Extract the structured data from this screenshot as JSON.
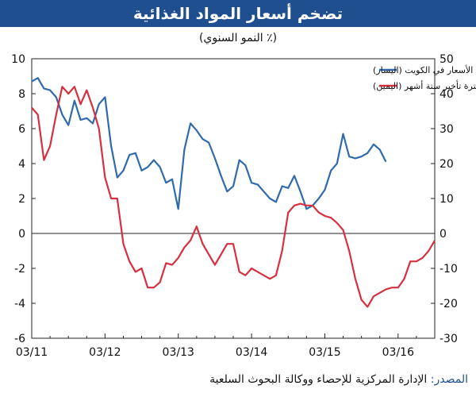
{
  "header": {
    "title": "تضخم أسعار المواد الغذائية",
    "subtitle": "(٪ النمو السنوي)"
  },
  "source": {
    "label": "المصدر:",
    "text": "الإدارة المركزية للإحصاء ووكالة البحوث السلعية"
  },
  "chart_data": {
    "type": "line",
    "grid": false,
    "legend_position": "top-right",
    "x_ticks": [
      "03/11",
      "03/12",
      "03/13",
      "03/14",
      "03/15",
      "03/16"
    ],
    "x_range_months": [
      0,
      66
    ],
    "y_left": {
      "min": -6,
      "max": 10,
      "step": 2,
      "ticks": [
        -6,
        -4,
        -2,
        0,
        2,
        4,
        6,
        8,
        10
      ]
    },
    "y_right": {
      "min": -30,
      "max": 50,
      "step": 10,
      "ticks": [
        -30,
        -20,
        -10,
        0,
        10,
        20,
        30,
        40,
        50
      ]
    },
    "series": [
      {
        "name": "الأسعار في الكويت (اليسار)",
        "axis": "left",
        "color": "#2f6aad",
        "x": [
          0,
          1,
          2,
          3,
          4,
          5,
          6,
          7,
          8,
          9,
          10,
          11,
          12,
          13,
          14,
          15,
          16,
          17,
          18,
          19,
          20,
          21,
          22,
          23,
          24,
          25,
          26,
          27,
          28,
          29,
          30,
          31,
          32,
          33,
          34,
          35,
          36,
          37,
          38,
          39,
          40,
          41,
          42,
          43,
          44,
          45,
          46,
          47,
          48,
          49,
          50,
          51,
          52,
          53,
          54,
          55,
          56,
          57,
          58,
          59,
          60,
          61,
          62
        ],
        "values": [
          8.7,
          8.9,
          8.3,
          8.2,
          7.8,
          6.8,
          6.2,
          7.6,
          6.5,
          6.6,
          6.3,
          7.4,
          7.8,
          5.0,
          3.2,
          3.6,
          4.5,
          4.6,
          3.6,
          3.8,
          4.2,
          3.8,
          2.9,
          3.1,
          1.4,
          4.8,
          6.3,
          5.9,
          5.4,
          5.2,
          4.3,
          3.3,
          2.4,
          2.7,
          4.2,
          3.9,
          2.9,
          2.8,
          2.4,
          2.0,
          1.8,
          2.7,
          2.6,
          3.3,
          2.4,
          1.4,
          1.6,
          2.0,
          2.5,
          3.6,
          4.0,
          5.7,
          4.4,
          4.3,
          4.4,
          4.6,
          5.1,
          4.8,
          4.1,
          null,
          null,
          null,
          null
        ]
      },
      {
        "name": "الأسعار العالمية: فترة تأخير ستة أشهر (اليمين)",
        "axis": "right",
        "color": "#d63040",
        "x": [
          0,
          1,
          2,
          3,
          4,
          5,
          6,
          7,
          8,
          9,
          10,
          11,
          12,
          13,
          14,
          15,
          16,
          17,
          18,
          19,
          20,
          21,
          22,
          23,
          24,
          25,
          26,
          27,
          28,
          29,
          30,
          31,
          32,
          33,
          34,
          35,
          36,
          37,
          38,
          39,
          40,
          41,
          42,
          43,
          44,
          45,
          46,
          47,
          48,
          49,
          50,
          51,
          52,
          53,
          54,
          55,
          56,
          57,
          58,
          59,
          60,
          61,
          62,
          63,
          64,
          65,
          66
        ],
        "values": [
          36,
          34,
          21,
          25,
          34,
          42,
          40,
          42,
          37,
          41,
          36,
          30,
          16,
          10,
          10,
          -3,
          -8,
          -11,
          -10,
          -15.5,
          -15.5,
          -14,
          -8.5,
          -9,
          -7,
          -4,
          -2,
          2,
          -3,
          -6,
          -9,
          -6,
          -3,
          -3,
          -11,
          -12,
          -10,
          -11,
          -12,
          -13,
          -12,
          -5,
          6,
          8,
          8.5,
          8,
          8,
          6,
          5,
          4.5,
          3,
          1,
          -5,
          -13,
          -19,
          -21,
          -18,
          -17,
          -16,
          -15.5,
          -15.5,
          -13,
          -8,
          -8,
          -7,
          -5,
          -2
        ]
      }
    ]
  }
}
